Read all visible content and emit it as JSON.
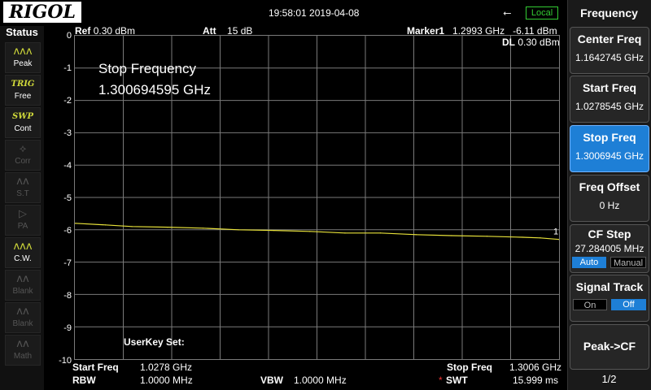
{
  "topbar": {
    "brand": "RIGOL",
    "datetime": "19:58:01 2019-04-08",
    "usb_icon": "usb-icon",
    "local_badge": "Local"
  },
  "status": {
    "title": "Status",
    "items": [
      {
        "icon": "peak-icon",
        "glyph": "ᴧᴧᴧ",
        "label": "Peak",
        "state": "on"
      },
      {
        "icon": "trig-icon",
        "glyph": "TRIG",
        "label": "Free",
        "state": "on"
      },
      {
        "icon": "swp-icon",
        "glyph": "SWP",
        "label": "Cont",
        "state": "on"
      },
      {
        "icon": "corr-icon",
        "glyph": "⟡",
        "label": "Corr",
        "state": "off"
      },
      {
        "icon": "st-icon",
        "glyph": "ᴧᴧ",
        "label": "S.T",
        "state": "off"
      },
      {
        "icon": "pa-icon",
        "glyph": "▷",
        "label": "PA",
        "state": "off"
      },
      {
        "icon": "cw-icon",
        "glyph": "ᴧᴧᴧ",
        "label": "C.W.",
        "state": "on"
      },
      {
        "icon": "blank-icon",
        "glyph": "ᴧᴧ",
        "label": "Blank",
        "state": "off"
      },
      {
        "icon": "blank-icon",
        "glyph": "ᴧᴧ",
        "label": "Blank",
        "state": "off"
      },
      {
        "icon": "math-icon",
        "glyph": "ᴧᴧ",
        "label": "Math",
        "state": "off"
      }
    ]
  },
  "header": {
    "ref_label": "Ref",
    "ref_value": "0.30 dBm",
    "att_label": "Att",
    "att_value": "15 dB",
    "marker_label": "Marker1",
    "marker_freq": "1.2993 GHz",
    "marker_level": "-6.11 dBm",
    "dl_label": "DL",
    "dl_value": "0.30 dBm"
  },
  "overlay": {
    "title": "Stop Frequency",
    "value": "1.300694595 GHz",
    "userkey": "UserKey Set:"
  },
  "footer": {
    "start_label": "Start Freq",
    "start_value": "1.0278 GHz",
    "stop_label": "Stop Freq",
    "stop_value": "1.3006 GHz",
    "rbw_label": "RBW",
    "rbw_value": "1.0000 MHz",
    "vbw_label": "VBW",
    "vbw_value": "1.0000 MHz",
    "swt_star": "*",
    "swt_label": "SWT",
    "swt_value": "15.999 ms"
  },
  "menu": {
    "title": "Frequency",
    "center": {
      "label": "Center Freq",
      "value": "1.1642745 GHz"
    },
    "start": {
      "label": "Start Freq",
      "value": "1.0278545 GHz"
    },
    "stop": {
      "label": "Stop Freq",
      "value": "1.3006945 GHz"
    },
    "offset": {
      "label": "Freq Offset",
      "value": "0 Hz"
    },
    "cfstep": {
      "label": "CF Step",
      "value": "27.284005 MHz",
      "auto": "Auto",
      "manual": "Manual"
    },
    "track": {
      "label": "Signal Track",
      "on": "On",
      "off": "Off"
    },
    "peakcf": {
      "label": "Peak->CF"
    },
    "page": "1/2"
  },
  "colors": {
    "trace": "#e8e23a",
    "accent": "#1e7fd6",
    "grid": "#7a7a7a"
  },
  "chart_data": {
    "type": "line",
    "y_ticks": [
      "0",
      "-1",
      "-2",
      "-3",
      "-4",
      "-5",
      "-6",
      "-7",
      "-8",
      "-9",
      "-10"
    ],
    "ylim": [
      -10,
      0
    ],
    "xlim": [
      1.0278,
      1.3006
    ],
    "marker_label": "1",
    "series": [
      {
        "x": [
          1.0278,
          1.045,
          1.06,
          1.08,
          1.1,
          1.12,
          1.14,
          1.16,
          1.18,
          1.2,
          1.22,
          1.24,
          1.26,
          1.28,
          1.29,
          1.3006
        ],
        "values": [
          -5.8,
          -5.85,
          -5.9,
          -5.92,
          -5.95,
          -6.0,
          -6.02,
          -6.05,
          -6.1,
          -6.1,
          -6.15,
          -6.18,
          -6.2,
          -6.23,
          -6.25,
          -6.3
        ]
      }
    ]
  }
}
